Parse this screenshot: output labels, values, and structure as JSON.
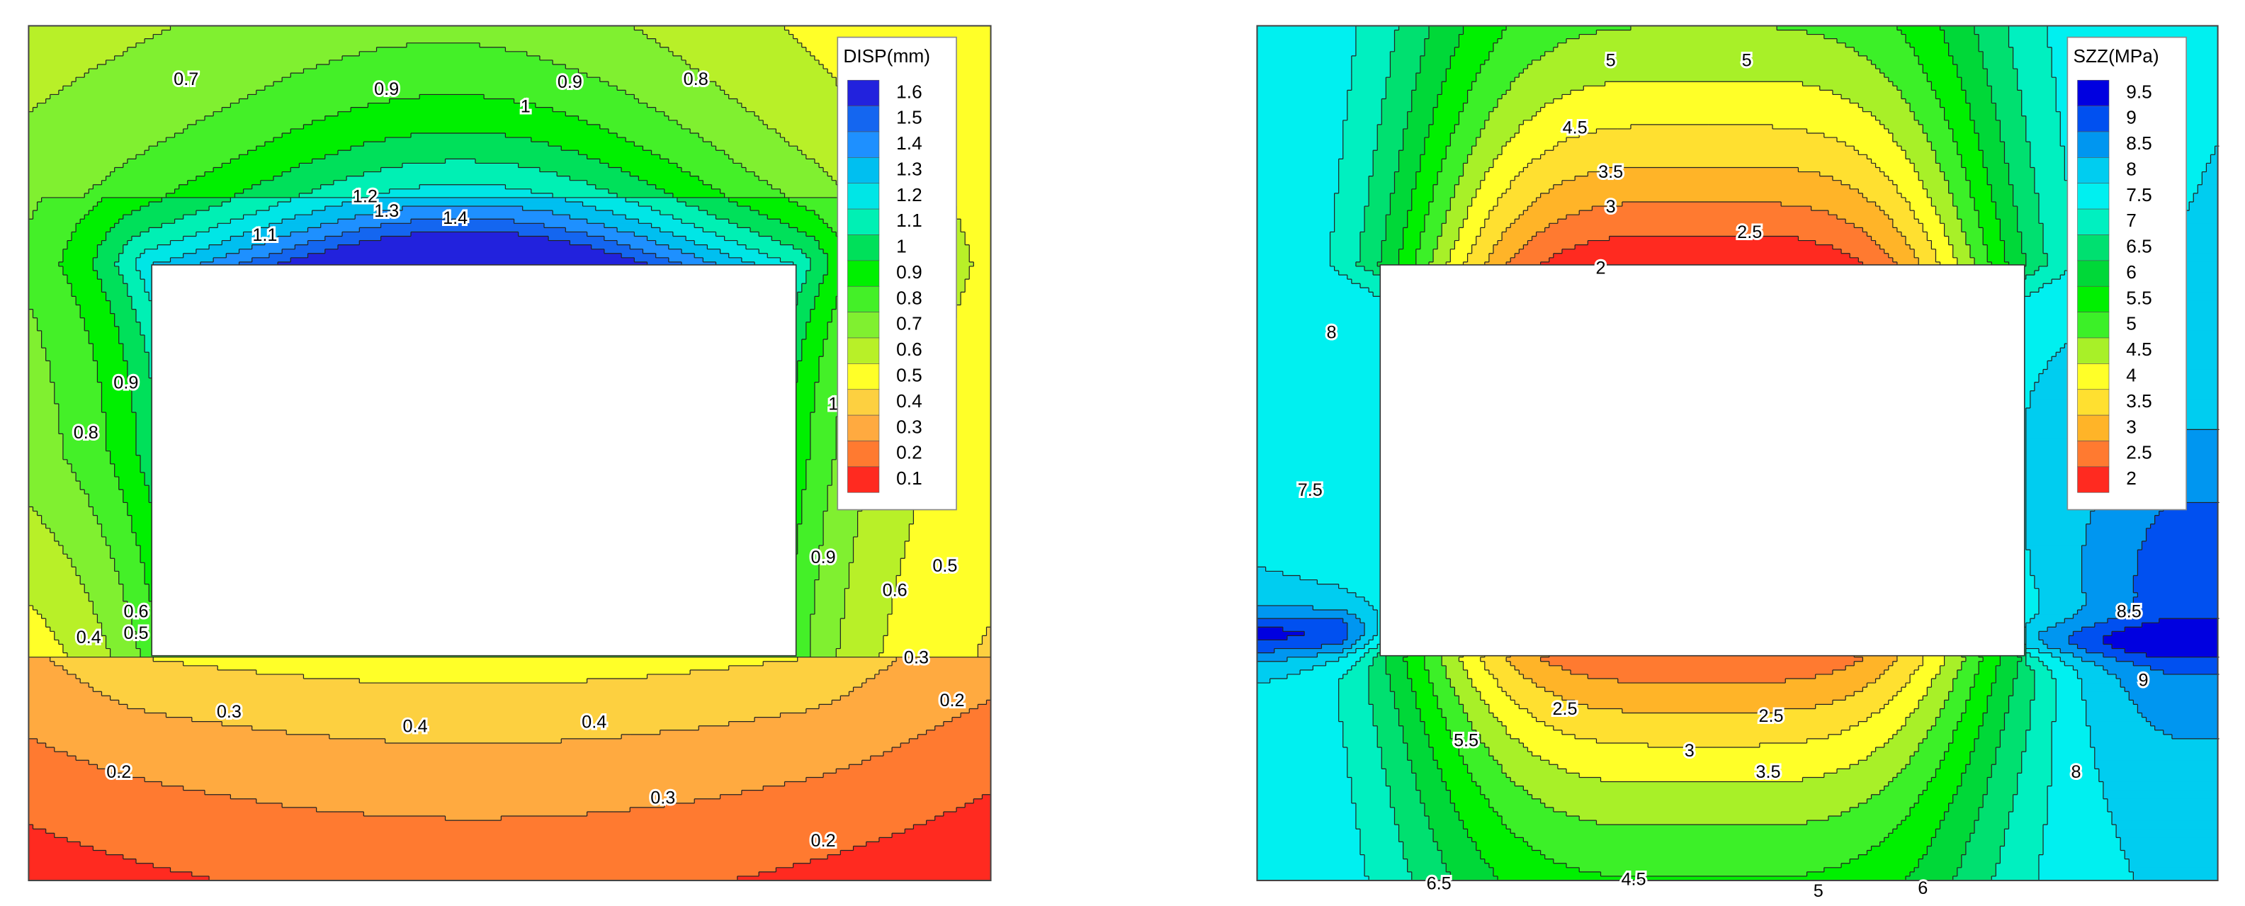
{
  "chart_data": [
    {
      "type": "contour",
      "legend_title": "DISP(mm)",
      "levels": [
        1.6,
        1.5,
        1.4,
        1.3,
        1.2,
        1.1,
        1,
        0.9,
        0.8,
        0.7,
        0.6,
        0.5,
        0.4,
        0.3,
        0.2,
        0.1
      ],
      "colors": [
        "#2222dd",
        "#1466f0",
        "#1e90ff",
        "#00bff0",
        "#00e6e6",
        "#00f0b4",
        "#00e05a",
        "#00f000",
        "#44f028",
        "#80f030",
        "#b8f028",
        "#ffff28",
        "#fdd040",
        "#ffaa40",
        "#ff7a30",
        "#ff2a20"
      ],
      "contour_labels": [
        0.7,
        0.9,
        1,
        0.9,
        0.8,
        1.2,
        1.3,
        1.4,
        1.1,
        0.8,
        0.9,
        0.6,
        0.5,
        0.4,
        0.3,
        0.4,
        0.4,
        0.3,
        0.2,
        0.2,
        0.6,
        0.5,
        0.9,
        1,
        0.3,
        0.2
      ]
    },
    {
      "type": "contour",
      "legend_title": "SZZ(MPa)",
      "levels": [
        9.5,
        9,
        8.5,
        8,
        7.5,
        7,
        6.5,
        6,
        5.5,
        5,
        4.5,
        4,
        3.5,
        3,
        2.5,
        2
      ],
      "colors": [
        "#0000e0",
        "#0050f0",
        "#0096f0",
        "#00cdf0",
        "#00f0f0",
        "#00f0c0",
        "#00e070",
        "#00d838",
        "#00f000",
        "#3cf028",
        "#a8f028",
        "#ffff28",
        "#ffe030",
        "#ffb428",
        "#ff7a30",
        "#ff2a20"
      ],
      "contour_labels": [
        5,
        5,
        4.5,
        3.5,
        3,
        2.5,
        2,
        8,
        7.5,
        8.5,
        9,
        2.5,
        2.5,
        3,
        3.5,
        4.5,
        5,
        6,
        8,
        5.5,
        6.5
      ]
    }
  ]
}
